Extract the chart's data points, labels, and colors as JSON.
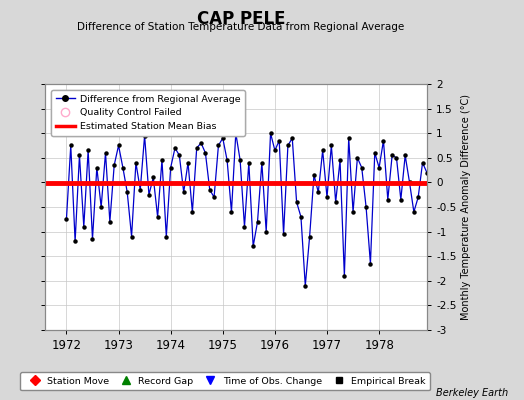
{
  "title": "CAP PELE",
  "subtitle": "Difference of Station Temperature Data from Regional Average",
  "ylabel": "Monthly Temperature Anomaly Difference (°C)",
  "xlabel_years": [
    1972,
    1973,
    1974,
    1975,
    1976,
    1977,
    1978
  ],
  "bias_value": -0.02,
  "ylim": [
    -3,
    2
  ],
  "yticks": [
    -3,
    -2.5,
    -2,
    -1.5,
    -1,
    -0.5,
    0,
    0.5,
    1,
    1.5,
    2
  ],
  "background_color": "#d8d8d8",
  "plot_bg_color": "#ffffff",
  "line_color": "#0000cc",
  "bias_color": "#ff0000",
  "watermark": "Berkeley Earth",
  "monthly_values": [
    -0.75,
    0.75,
    -1.2,
    0.55,
    -0.9,
    0.65,
    -1.15,
    0.3,
    -0.5,
    0.6,
    -0.8,
    0.35,
    0.75,
    0.3,
    -0.2,
    -1.1,
    0.4,
    -0.15,
    0.95,
    -0.25,
    0.1,
    -0.7,
    0.45,
    -1.1,
    0.3,
    0.7,
    0.55,
    -0.2,
    0.4,
    -0.6,
    0.7,
    0.8,
    0.6,
    -0.15,
    -0.3,
    0.75,
    0.9,
    0.45,
    -0.6,
    1.0,
    0.45,
    -0.9,
    0.4,
    -1.3,
    -0.8,
    0.4,
    -1.0,
    1.0,
    0.65,
    0.85,
    -1.05,
    0.75,
    0.9,
    -0.4,
    -0.7,
    -2.1,
    -1.1,
    0.15,
    -0.2,
    0.65,
    -0.3,
    0.75,
    -0.4,
    0.45,
    -1.9,
    0.9,
    -0.6,
    0.5,
    0.3,
    -0.5,
    -1.65,
    0.6,
    0.3,
    0.85,
    -0.35,
    0.55,
    0.5,
    -0.35,
    0.55,
    0.0,
    -0.6,
    -0.3,
    0.4,
    0.2
  ],
  "start_year": 1972,
  "start_month": 1,
  "xlim": [
    1971.58,
    1978.92
  ]
}
